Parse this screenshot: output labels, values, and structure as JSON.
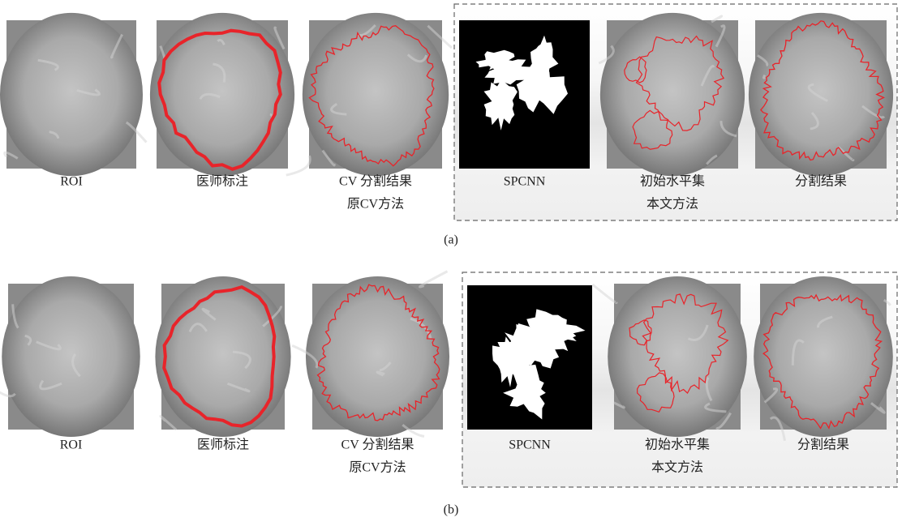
{
  "panels": [
    {
      "label": "(a)",
      "left": {
        "captions": [
          "ROI",
          "医师标注",
          "CV 分割结果"
        ],
        "group_caption": "原CV方法"
      },
      "right": {
        "captions": [
          "SPCNN",
          "初始水平集",
          "分割结果"
        ],
        "group_caption": "本文方法"
      }
    },
    {
      "label": "(b)",
      "left": {
        "captions": [
          "ROI",
          "医师标注",
          "CV 分割结果"
        ],
        "group_caption": "原CV方法"
      },
      "right": {
        "captions": [
          "SPCNN",
          "初始水平集",
          "分割结果"
        ],
        "group_caption": "本文方法"
      }
    }
  ]
}
